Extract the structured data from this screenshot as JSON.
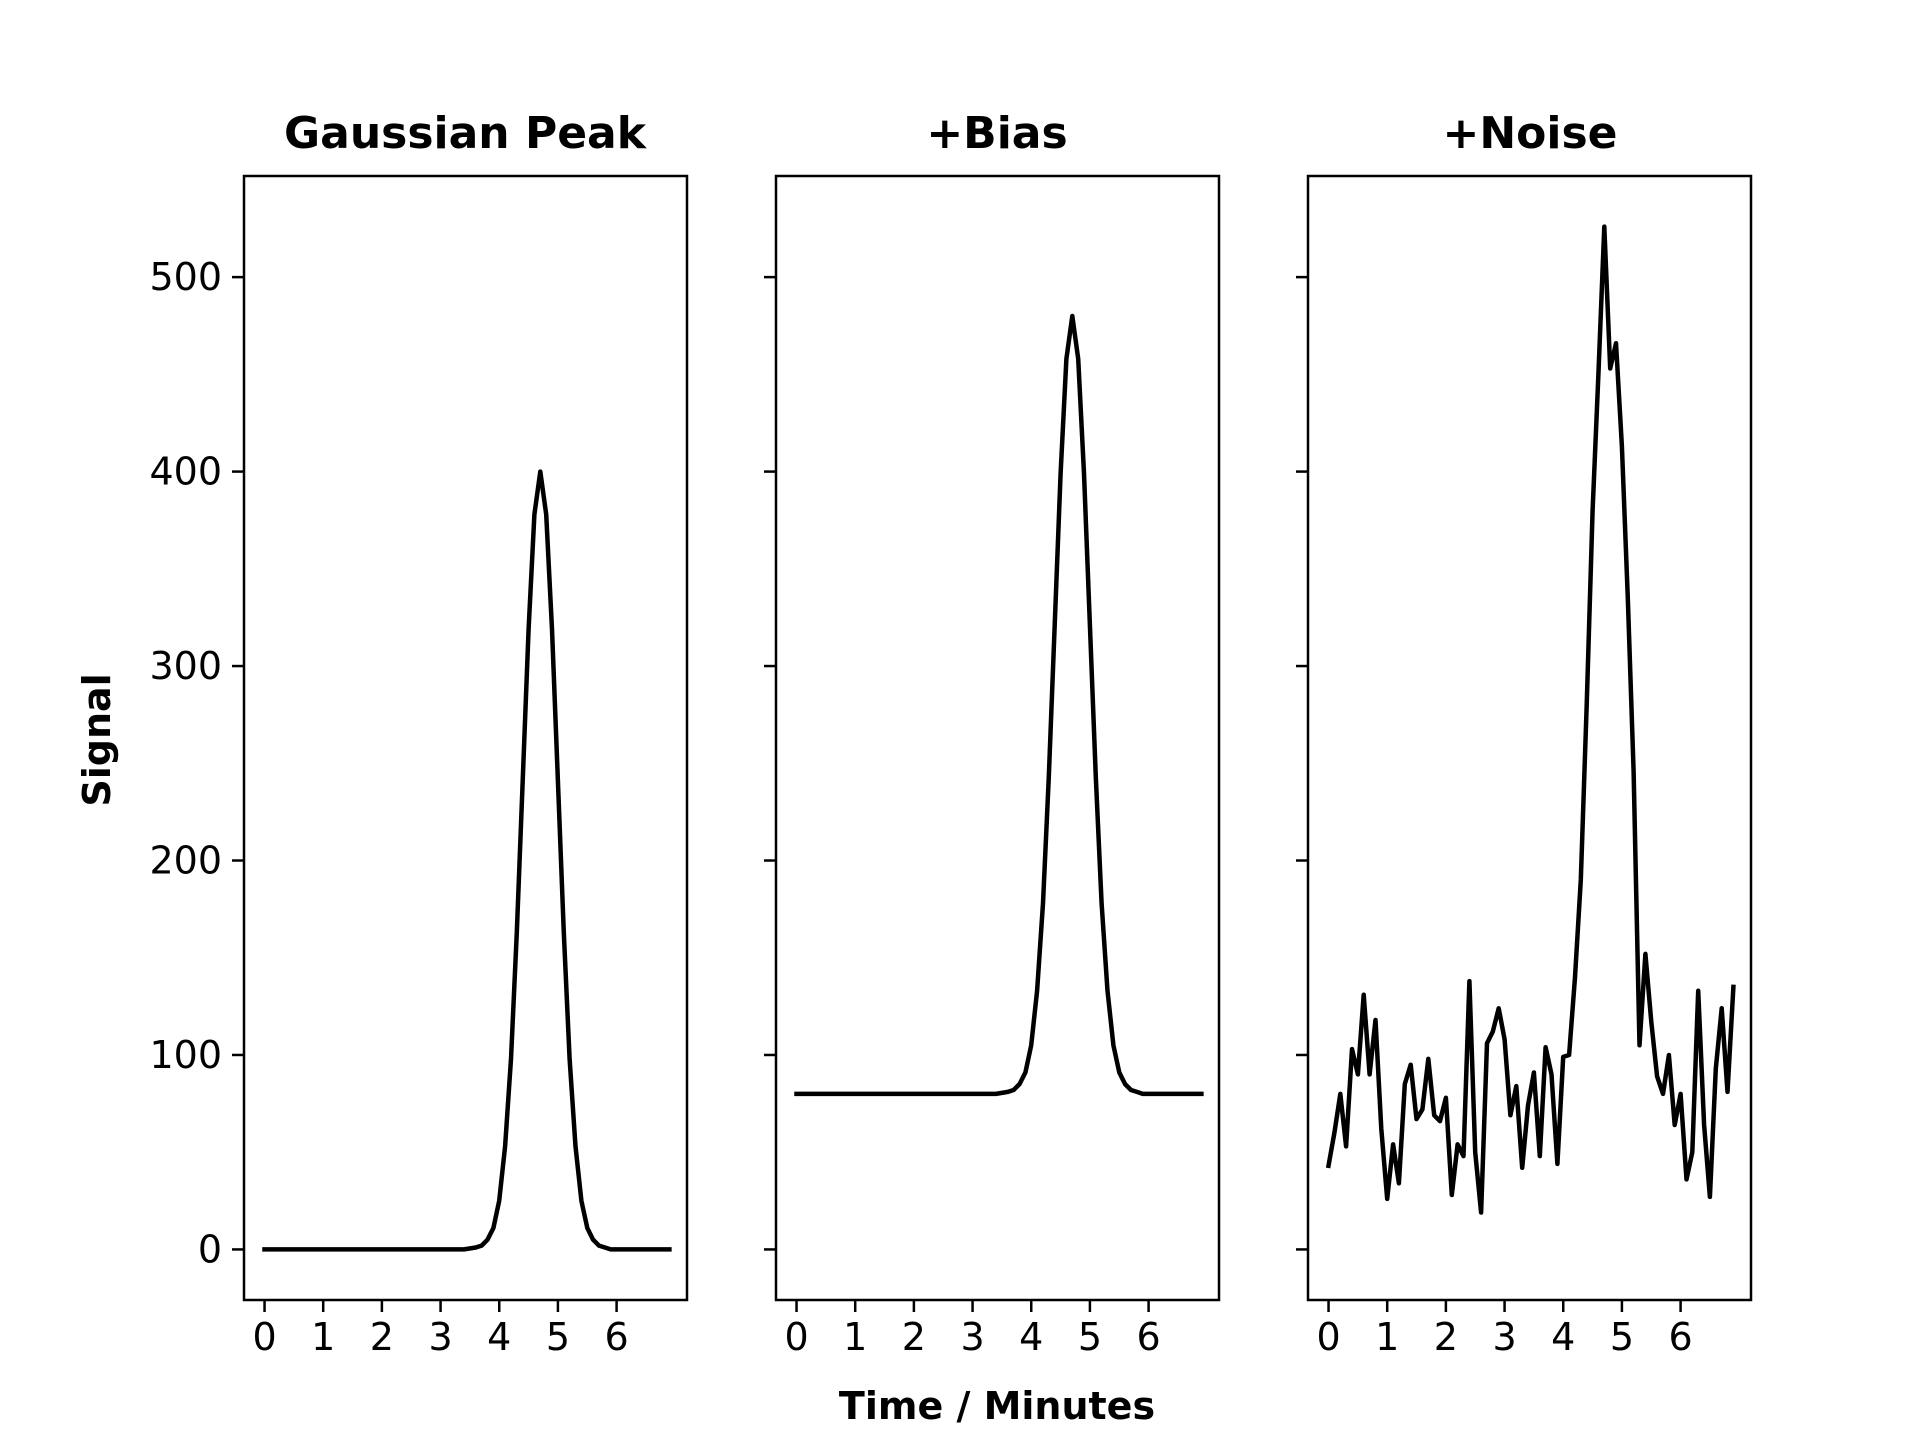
{
  "chart_data": [
    {
      "type": "line",
      "title": "Gaussian Peak",
      "ylabel": "Signal",
      "xlabel": "",
      "xlim": [
        -0.35,
        7.2
      ],
      "ylim": [
        -26,
        552
      ],
      "xticks": [
        0,
        1,
        2,
        3,
        4,
        5,
        6
      ],
      "xtick_labels": [
        "0",
        "1",
        "2",
        "3",
        "4",
        "5",
        "6"
      ],
      "yticks": [
        0,
        100,
        200,
        300,
        400,
        500
      ],
      "ytick_labels": [
        "0",
        "100",
        "200",
        "300",
        "400",
        "500"
      ],
      "show_ytick_labels": true,
      "grid": false,
      "series": [
        {
          "color": "#000000",
          "x": [
            0,
            3.4,
            3.6,
            3.7,
            3.8,
            3.9,
            4.0,
            4.1,
            4.2,
            4.3,
            4.4,
            4.5,
            4.6,
            4.7,
            4.8,
            4.9,
            5.0,
            5.1,
            5.2,
            5.3,
            5.4,
            5.5,
            5.6,
            5.7,
            5.8,
            5.9,
            6.0,
            6.2,
            6.9
          ],
          "y": [
            0,
            0,
            1,
            2,
            5,
            11,
            25,
            53,
            98,
            163,
            241,
            319,
            378,
            400,
            378,
            319,
            241,
            163,
            98,
            53,
            25,
            11,
            5,
            2,
            1,
            0,
            0,
            0,
            0
          ]
        }
      ]
    },
    {
      "type": "line",
      "title": "+Bias",
      "ylabel": "",
      "xlabel": "Time / Minutes",
      "xlim": [
        -0.35,
        7.2
      ],
      "ylim": [
        -26,
        552
      ],
      "xticks": [
        0,
        1,
        2,
        3,
        4,
        5,
        6
      ],
      "xtick_labels": [
        "0",
        "1",
        "2",
        "3",
        "4",
        "5",
        "6"
      ],
      "yticks": [
        0,
        100,
        200,
        300,
        400,
        500
      ],
      "ytick_labels": [],
      "show_ytick_labels": false,
      "grid": false,
      "series": [
        {
          "color": "#000000",
          "x": [
            0,
            3.4,
            3.6,
            3.7,
            3.8,
            3.9,
            4.0,
            4.1,
            4.2,
            4.3,
            4.4,
            4.5,
            4.6,
            4.7,
            4.8,
            4.9,
            5.0,
            5.1,
            5.2,
            5.3,
            5.4,
            5.5,
            5.6,
            5.7,
            5.8,
            5.9,
            6.0,
            6.2,
            6.9
          ],
          "y": [
            80,
            80,
            81,
            82,
            85,
            91,
            105,
            133,
            178,
            243,
            321,
            399,
            458,
            480,
            458,
            399,
            321,
            243,
            178,
            133,
            105,
            91,
            85,
            82,
            81,
            80,
            80,
            80,
            80
          ]
        }
      ]
    },
    {
      "type": "line",
      "title": "+Noise",
      "ylabel": "",
      "xlabel": "",
      "xlim": [
        -0.35,
        7.2
      ],
      "ylim": [
        -26,
        552
      ],
      "xticks": [
        0,
        1,
        2,
        3,
        4,
        5,
        6
      ],
      "xtick_labels": [
        "0",
        "1",
        "2",
        "3",
        "4",
        "5",
        "6"
      ],
      "yticks": [
        0,
        100,
        200,
        300,
        400,
        500
      ],
      "ytick_labels": [],
      "show_ytick_labels": false,
      "grid": false,
      "series": [
        {
          "color": "#000000",
          "x": [
            0,
            0.1,
            0.2,
            0.3,
            0.4,
            0.5,
            0.6,
            0.7,
            0.8,
            0.9,
            1.0,
            1.1,
            1.2,
            1.3,
            1.4,
            1.5,
            1.6,
            1.7,
            1.8,
            1.9,
            2.0,
            2.1,
            2.2,
            2.3,
            2.4,
            2.5,
            2.6,
            2.7,
            2.8,
            2.9,
            3.0,
            3.1,
            3.2,
            3.3,
            3.4,
            3.5,
            3.6,
            3.7,
            3.8,
            3.9,
            4.0,
            4.1,
            4.2,
            4.3,
            4.4,
            4.5,
            4.6,
            4.7,
            4.8,
            4.9,
            5.0,
            5.1,
            5.2,
            5.3,
            5.4,
            5.5,
            5.6,
            5.7,
            5.8,
            5.9,
            6.0,
            6.1,
            6.2,
            6.3,
            6.4,
            6.5,
            6.6,
            6.7,
            6.8,
            6.9
          ],
          "y": [
            43,
            60,
            80,
            53,
            103,
            90,
            131,
            90,
            118,
            62,
            26,
            54,
            34,
            85,
            95,
            67,
            72,
            98,
            69,
            66,
            78,
            28,
            54,
            48,
            138,
            50,
            19,
            106,
            112,
            124,
            108,
            69,
            84,
            42,
            74,
            91,
            48,
            104,
            90,
            44,
            99,
            100,
            140,
            190,
            280,
            380,
            450,
            526,
            453,
            466,
            413,
            335,
            246,
            105,
            152,
            117,
            89,
            80,
            100,
            64,
            80,
            36,
            50,
            133,
            64,
            27,
            93,
            124,
            81,
            135
          ]
        }
      ]
    }
  ]
}
